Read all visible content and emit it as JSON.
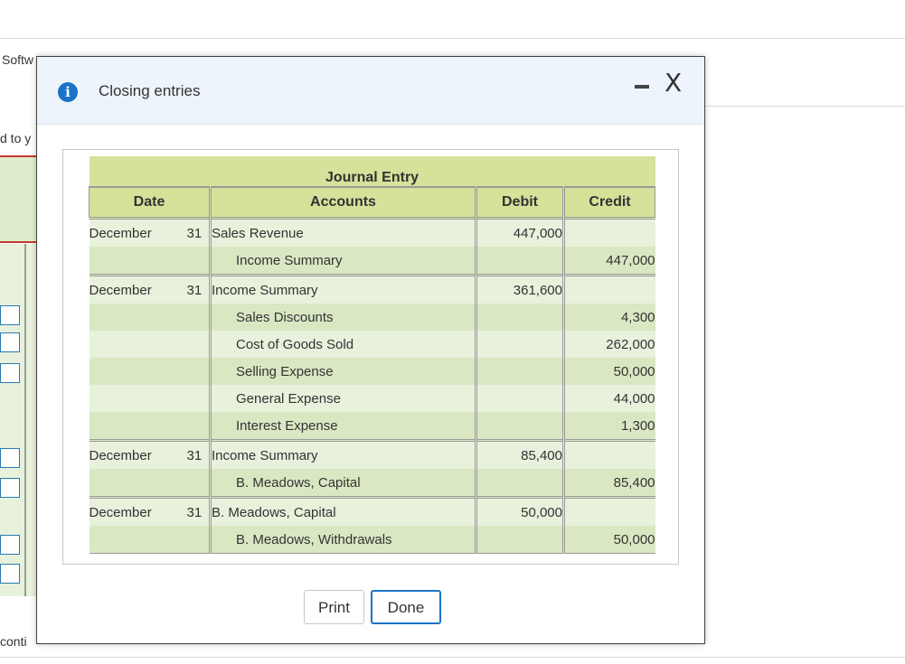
{
  "background": {
    "software_text": "Softw",
    "left_text": "d to y",
    "bottom_text": "conti"
  },
  "modal": {
    "title": "Closing entries",
    "icons": {
      "info": "info-icon",
      "minimize": "minimize-icon",
      "close": "close-icon"
    },
    "info_glyph": "i",
    "close_glyph": "X",
    "table": {
      "caption": "Journal Entry",
      "headers": {
        "date": "Date",
        "accounts": "Accounts",
        "debit": "Debit",
        "credit": "Credit"
      },
      "rows": [
        {
          "month": "December",
          "day": "31",
          "account": "Sales Revenue",
          "debit": "447,000",
          "credit": ""
        },
        {
          "month": "",
          "day": "",
          "account": "Income Summary",
          "debit": "",
          "credit": "447,000"
        },
        {
          "month": "December",
          "day": "31",
          "account": "Income Summary",
          "debit": "361,600",
          "credit": ""
        },
        {
          "month": "",
          "day": "",
          "account": "Sales Discounts",
          "debit": "",
          "credit": "4,300"
        },
        {
          "month": "",
          "day": "",
          "account": "Cost of Goods Sold",
          "debit": "",
          "credit": "262,000"
        },
        {
          "month": "",
          "day": "",
          "account": "Selling Expense",
          "debit": "",
          "credit": "50,000"
        },
        {
          "month": "",
          "day": "",
          "account": "General Expense",
          "debit": "",
          "credit": "44,000"
        },
        {
          "month": "",
          "day": "",
          "account": "Interest Expense",
          "debit": "",
          "credit": "1,300"
        },
        {
          "month": "December",
          "day": "31",
          "account": "Income Summary",
          "debit": "85,400",
          "credit": ""
        },
        {
          "month": "",
          "day": "",
          "account": "B. Meadows, Capital",
          "debit": "",
          "credit": "85,400"
        },
        {
          "month": "December",
          "day": "31",
          "account": "B. Meadows, Capital",
          "debit": "50,000",
          "credit": ""
        },
        {
          "month": "",
          "day": "",
          "account": "B. Meadows, Withdrawals",
          "debit": "",
          "credit": "50,000"
        }
      ]
    },
    "buttons": {
      "print": "Print",
      "done": "Done"
    }
  },
  "colors": {
    "accent": "#1a73c7",
    "header_green": "#d4e29a",
    "row_light": "#e8f1dc",
    "row_dark": "#d9e8c3"
  }
}
